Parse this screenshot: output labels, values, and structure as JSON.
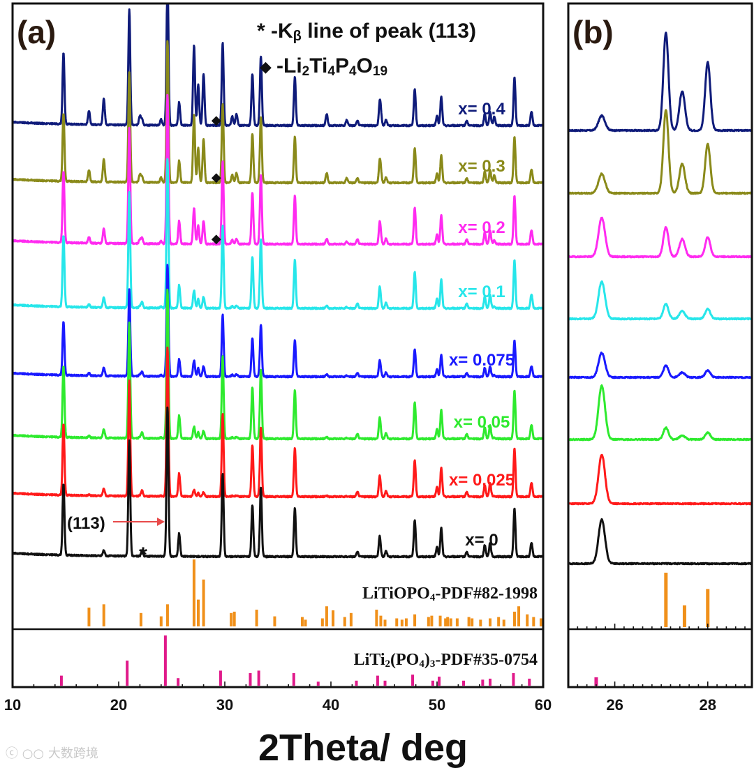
{
  "chart_data": [
    {
      "panel": "(a)",
      "type": "line",
      "xlabel": "2Theta/ deg",
      "xlim": [
        10,
        60
      ],
      "xticks": [
        10,
        20,
        30,
        40,
        50,
        60
      ],
      "legend_title": "* -Kβ line of peak (113)",
      "legend_title_parts": [
        "* -K",
        "β",
        " line of peak (113)"
      ],
      "legend_marker": "◆",
      "legend_phase_parts": [
        "-Li",
        "2",
        "Ti",
        "4",
        "P",
        "4",
        "O",
        "19"
      ],
      "annotation_113": "(113)",
      "kbeta_marker": "*",
      "kbeta_position": 22.3,
      "diamond_positions": [
        29.2,
        29.2,
        29.2
      ],
      "series": [
        {
          "name": "x= 0.4",
          "color": "#0f1b7a",
          "peak_scale": 1.0,
          "extra_scale": 1.0
        },
        {
          "name": "x= 0.3",
          "color": "#8a8a1a",
          "peak_scale": 0.95,
          "extra_scale": 0.85
        },
        {
          "name": "x= 0.2",
          "color": "#ff2bf0",
          "peak_scale": 1.0,
          "extra_scale": 0.45
        },
        {
          "name": "x= 0.1",
          "color": "#27e6ea",
          "peak_scale": 1.0,
          "extra_scale": 0.22
        },
        {
          "name": "x= 0.075",
          "color": "#1a1aff",
          "peak_scale": 0.75,
          "extra_scale": 0.2
        },
        {
          "name": "x= 0.05",
          "color": "#2eea2e",
          "peak_scale": 1.0,
          "extra_scale": 0.15
        },
        {
          "name": "x= 0.025",
          "color": "#ff1a1a",
          "peak_scale": 1.0,
          "extra_scale": 0.08
        },
        {
          "name": "x= 0",
          "color": "#111111",
          "peak_scale": 1.0,
          "extra_scale": 0.0
        }
      ],
      "main_peaks": [
        [
          14.8,
          0.62
        ],
        [
          18.6,
          0.05
        ],
        [
          21.0,
          1.0
        ],
        [
          22.2,
          0.05
        ],
        [
          24.6,
          1.3
        ],
        [
          25.7,
          0.2
        ],
        [
          29.8,
          0.72
        ],
        [
          32.6,
          0.45
        ],
        [
          33.4,
          0.6
        ],
        [
          36.6,
          0.42
        ],
        [
          42.5,
          0.04
        ],
        [
          44.6,
          0.18
        ],
        [
          45.2,
          0.05
        ],
        [
          47.9,
          0.32
        ],
        [
          50.0,
          0.08
        ],
        [
          50.4,
          0.25
        ],
        [
          52.8,
          0.04
        ],
        [
          54.5,
          0.1
        ],
        [
          55.0,
          0.12
        ],
        [
          57.3,
          0.42
        ],
        [
          58.9,
          0.12
        ]
      ],
      "extra_peaks": [
        [
          17.2,
          0.12
        ],
        [
          18.6,
          0.18
        ],
        [
          22.0,
          0.08
        ],
        [
          24.0,
          0.05
        ],
        [
          27.1,
          0.7
        ],
        [
          27.5,
          0.35
        ],
        [
          28.0,
          0.45
        ],
        [
          30.7,
          0.08
        ],
        [
          31.1,
          0.1
        ],
        [
          39.6,
          0.1
        ],
        [
          41.5,
          0.05
        ],
        [
          44.7,
          0.08
        ],
        [
          55.4,
          0.08
        ]
      ],
      "reference_patterns": [
        {
          "label": "LiTiOPO4-PDF#82-1998",
          "label_parts": [
            "LiTiOPO",
            "4",
            "-PDF#82-1998"
          ],
          "color": "#f0901a",
          "positions": [
            17.2,
            18.6,
            22.1,
            24.0,
            24.6,
            27.1,
            27.5,
            28.0,
            30.6,
            30.9,
            33.0,
            34.7,
            37.3,
            37.6,
            39.2,
            39.6,
            40.2,
            41.3,
            41.9,
            44.3,
            44.7,
            45.1,
            46.2,
            46.7,
            47.1,
            47.9,
            49.2,
            49.5,
            50.3,
            50.8,
            51.0,
            51.3,
            51.9,
            53.0,
            53.3,
            54.1,
            55.0,
            55.8,
            56.3,
            57.3,
            57.7,
            58.5,
            59.1,
            59.8
          ],
          "intensities": [
            0.28,
            0.33,
            0.2,
            0.15,
            0.33,
            1.0,
            0.4,
            0.7,
            0.2,
            0.22,
            0.25,
            0.15,
            0.14,
            0.1,
            0.12,
            0.3,
            0.24,
            0.14,
            0.2,
            0.25,
            0.16,
            0.1,
            0.12,
            0.1,
            0.12,
            0.18,
            0.14,
            0.16,
            0.16,
            0.12,
            0.14,
            0.12,
            0.12,
            0.14,
            0.12,
            0.1,
            0.12,
            0.14,
            0.1,
            0.22,
            0.3,
            0.18,
            0.14,
            0.12
          ]
        },
        {
          "label": "LiTi2(PO4)3-PDF#35-0754",
          "label_parts": [
            "LiTi",
            "2",
            "(PO",
            "4",
            ")",
            "3",
            "-PDF#35-0754"
          ],
          "color": "#e01a8a",
          "positions": [
            14.6,
            20.8,
            24.4,
            25.6,
            29.6,
            32.4,
            33.2,
            36.5,
            38.8,
            42.4,
            44.4,
            45.1,
            47.7,
            49.6,
            50.2,
            52.5,
            54.3,
            55.0,
            57.2,
            58.7
          ],
          "intensities": [
            0.2,
            0.5,
            1.0,
            0.15,
            0.3,
            0.25,
            0.3,
            0.25,
            0.08,
            0.1,
            0.2,
            0.1,
            0.22,
            0.1,
            0.18,
            0.1,
            0.12,
            0.14,
            0.25,
            0.14
          ]
        }
      ]
    },
    {
      "panel": "(b)",
      "type": "line",
      "xlim": [
        25.0,
        28.95
      ],
      "xticks": [
        26,
        28
      ],
      "series": [
        {
          "name": "x= 0.4",
          "color": "#0f1b7a",
          "p25_7": 0.15,
          "p27_1": 1.0,
          "p27_5": 0.4,
          "p28_0": 0.7
        },
        {
          "name": "x= 0.3",
          "color": "#8a8a1a",
          "p25_7": 0.2,
          "p27_1": 0.85,
          "p27_5": 0.3,
          "p28_0": 0.5
        },
        {
          "name": "x= 0.2",
          "color": "#ff2bf0",
          "p25_7": 0.4,
          "p27_1": 0.3,
          "p27_5": 0.18,
          "p28_0": 0.2
        },
        {
          "name": "x= 0.1",
          "color": "#27e6ea",
          "p25_7": 0.38,
          "p27_1": 0.15,
          "p27_5": 0.08,
          "p28_0": 0.1
        },
        {
          "name": "x= 0.075",
          "color": "#1a1aff",
          "p25_7": 0.25,
          "p27_1": 0.12,
          "p27_5": 0.05,
          "p28_0": 0.07
        },
        {
          "name": "x= 0.05",
          "color": "#2eea2e",
          "p25_7": 0.55,
          "p27_1": 0.12,
          "p27_5": 0.04,
          "p28_0": 0.07
        },
        {
          "name": "x= 0.025",
          "color": "#ff1a1a",
          "p25_7": 0.5,
          "p27_1": 0.0,
          "p27_5": 0.0,
          "p28_0": 0.0
        },
        {
          "name": "x= 0",
          "color": "#111111",
          "p25_7": 0.45,
          "p27_1": 0.0,
          "p27_5": 0.0,
          "p28_0": 0.0
        }
      ],
      "reference_patterns": [
        {
          "label": "LiTiOPO4-PDF#82-1998",
          "color": "#f0901a",
          "positions": [
            27.1,
            27.5,
            28.0
          ],
          "intensities": [
            1.0,
            0.4,
            0.7
          ]
        },
        {
          "label": "LiTi2(PO4)3-PDF#35-0754",
          "color": "#e01a8a",
          "positions": [
            25.6
          ],
          "intensities": [
            0.15
          ]
        }
      ]
    }
  ],
  "watermark": "ⓒ ○○ 大数跨境"
}
